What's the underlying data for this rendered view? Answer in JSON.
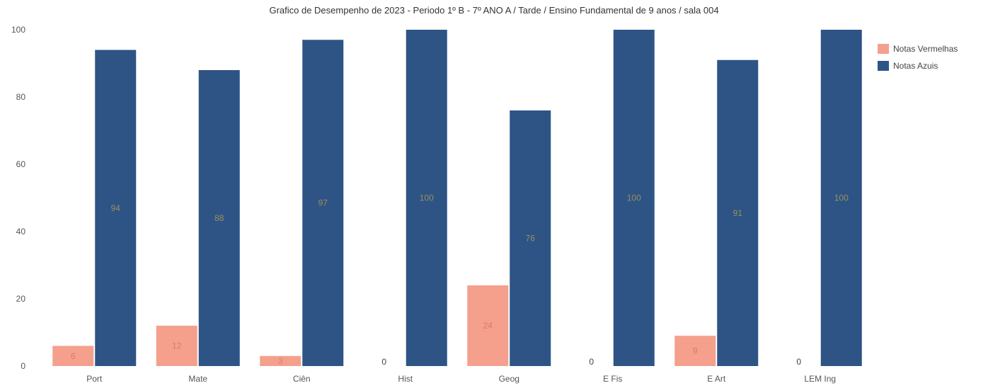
{
  "chart_data": {
    "type": "bar",
    "title": "Grafico de Desempenho de 2023 - Periodo 1º B - 7º ANO A / Tarde / Ensino Fundamental de 9 anos / sala 004",
    "categories": [
      "Port",
      "Mate",
      "Ciên",
      "Hist",
      "Geog",
      "E Fis",
      "E Art",
      "LEM Ing"
    ],
    "series": [
      {
        "name": "Notas Vermelhas",
        "color": "#f4a08c",
        "values": [
          6,
          12,
          3,
          0,
          24,
          0,
          9,
          0
        ]
      },
      {
        "name": "Notas Azuis",
        "color": "#2e5486",
        "values": [
          94,
          88,
          97,
          100,
          76,
          100,
          91,
          100
        ]
      }
    ],
    "ylim": [
      0,
      100
    ],
    "yticks": [
      0,
      20,
      40,
      60,
      80,
      100
    ],
    "xlabel": "",
    "ylabel": "",
    "grid": false,
    "legend_position": "top-right"
  }
}
